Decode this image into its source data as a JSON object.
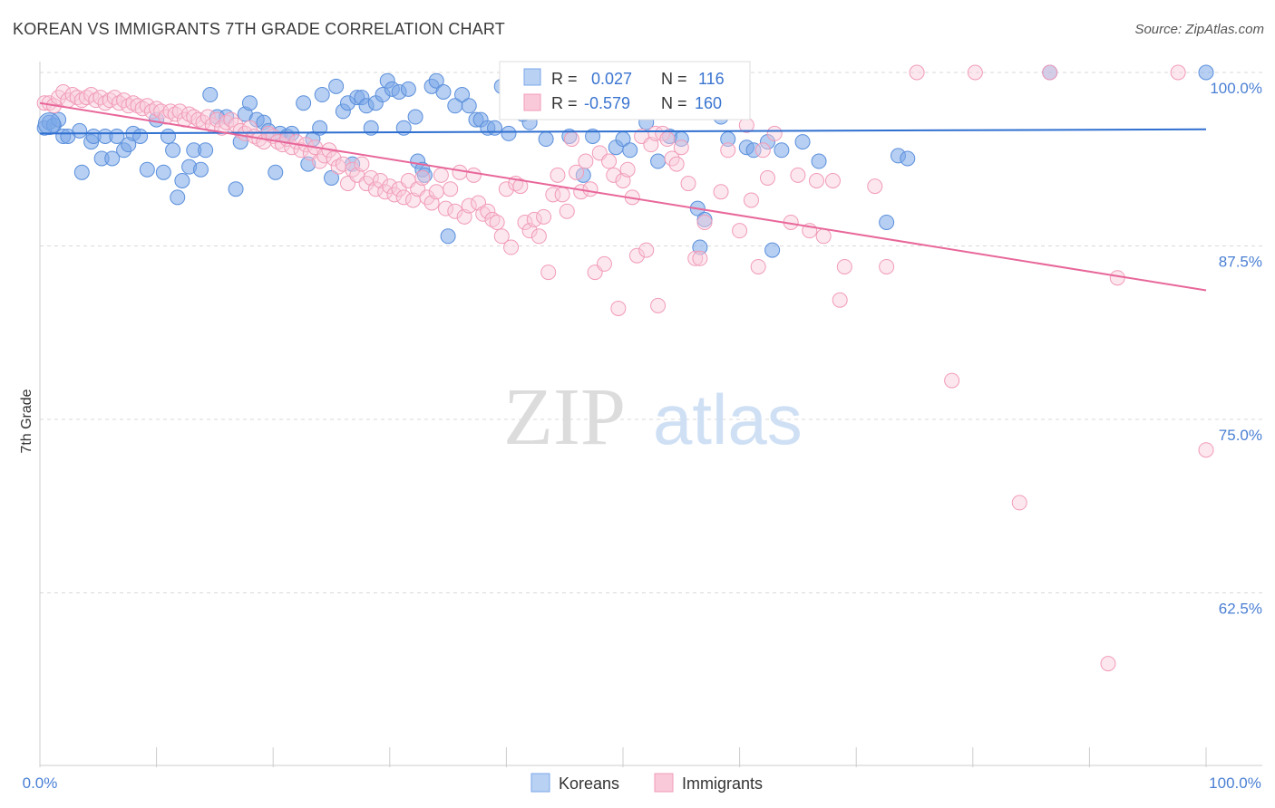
{
  "header": {
    "title": "KOREAN VS IMMIGRANTS 7TH GRADE CORRELATION CHART",
    "source": "Source: ZipAtlas.com"
  },
  "watermark": {
    "zip": "ZIP",
    "atlas": "atlas"
  },
  "legend_top": {
    "rows": [
      {
        "r_label": "R =",
        "r_value": "0.027",
        "n_label": "N =",
        "n_value": "116",
        "color": "#7aa7e8"
      },
      {
        "r_label": "R =",
        "r_value": "-0.579",
        "n_label": "N =",
        "n_value": "160",
        "color": "#f19bb8"
      }
    ]
  },
  "legend_bottom": {
    "items": [
      {
        "label": "Koreans",
        "color": "#7aa7e8"
      },
      {
        "label": "Immigrants",
        "color": "#f19bb8"
      }
    ]
  },
  "chart_data": {
    "type": "scatter",
    "title": "KOREAN VS IMMIGRANTS 7TH GRADE CORRELATION CHART",
    "xlabel": "",
    "ylabel": "7th Grade",
    "xlim": [
      0,
      100
    ],
    "ylim": [
      52.5,
      101.5
    ],
    "x_tick_labels": [
      "0.0%",
      "100.0%"
    ],
    "y_ticks": [
      100.0,
      87.5,
      75.0,
      62.5
    ],
    "y_tick_labels": [
      "100.0%",
      "87.5%",
      "75.0%",
      "62.5%"
    ],
    "grid": true,
    "legend_position": "top-center",
    "series": [
      {
        "name": "Koreans",
        "color": "#7aa7e8",
        "trend": {
          "x": [
            0,
            100
          ],
          "y": [
            95.6,
            95.9
          ]
        },
        "points": [
          [
            0.4,
            96.0
          ],
          [
            0.8,
            96.4
          ],
          [
            1.2,
            96.2
          ],
          [
            1.6,
            96.6
          ],
          [
            2.0,
            95.4
          ],
          [
            2.4,
            95.4
          ],
          [
            3.4,
            95.8
          ],
          [
            3.6,
            92.8
          ],
          [
            4.4,
            95.0
          ],
          [
            4.6,
            95.4
          ],
          [
            5.3,
            93.8
          ],
          [
            5.6,
            95.4
          ],
          [
            6.2,
            93.8
          ],
          [
            6.6,
            95.4
          ],
          [
            7.2,
            94.4
          ],
          [
            7.6,
            94.8
          ],
          [
            8.0,
            95.6
          ],
          [
            8.6,
            95.4
          ],
          [
            9.2,
            93.0
          ],
          [
            10.0,
            96.6
          ],
          [
            10.6,
            92.8
          ],
          [
            11.0,
            95.4
          ],
          [
            11.4,
            94.4
          ],
          [
            11.8,
            91.0
          ],
          [
            12.2,
            92.2
          ],
          [
            12.8,
            93.2
          ],
          [
            13.2,
            94.4
          ],
          [
            13.8,
            93.0
          ],
          [
            14.2,
            94.4
          ],
          [
            14.6,
            98.4
          ],
          [
            15.2,
            96.8
          ],
          [
            16.0,
            96.8
          ],
          [
            16.8,
            91.6
          ],
          [
            17.2,
            95.0
          ],
          [
            17.6,
            97.0
          ],
          [
            18.0,
            97.8
          ],
          [
            18.6,
            96.6
          ],
          [
            19.2,
            96.4
          ],
          [
            19.6,
            95.8
          ],
          [
            20.2,
            92.8
          ],
          [
            20.6,
            95.6
          ],
          [
            21.2,
            95.4
          ],
          [
            21.6,
            95.6
          ],
          [
            22.6,
            97.8
          ],
          [
            23.0,
            93.4
          ],
          [
            23.4,
            95.2
          ],
          [
            24.0,
            96.0
          ],
          [
            24.2,
            98.4
          ],
          [
            25.0,
            92.4
          ],
          [
            25.4,
            99.0
          ],
          [
            26.0,
            97.2
          ],
          [
            26.4,
            97.8
          ],
          [
            26.8,
            93.4
          ],
          [
            27.2,
            98.2
          ],
          [
            27.6,
            98.2
          ],
          [
            28.0,
            97.6
          ],
          [
            28.4,
            96.0
          ],
          [
            28.8,
            97.8
          ],
          [
            29.4,
            98.4
          ],
          [
            29.8,
            99.4
          ],
          [
            30.2,
            98.8
          ],
          [
            30.8,
            98.6
          ],
          [
            31.2,
            96.0
          ],
          [
            31.6,
            98.8
          ],
          [
            32.2,
            96.8
          ],
          [
            32.4,
            93.6
          ],
          [
            32.8,
            93.0
          ],
          [
            33.0,
            92.6
          ],
          [
            33.6,
            99.0
          ],
          [
            34.0,
            99.4
          ],
          [
            34.6,
            98.6
          ],
          [
            35.0,
            88.2
          ],
          [
            35.6,
            97.6
          ],
          [
            36.2,
            98.4
          ],
          [
            36.8,
            97.6
          ],
          [
            37.4,
            96.6
          ],
          [
            37.8,
            96.6
          ],
          [
            38.4,
            96.0
          ],
          [
            39.0,
            96.0
          ],
          [
            39.6,
            99.0
          ],
          [
            40.2,
            95.6
          ],
          [
            40.8,
            99.0
          ],
          [
            41.4,
            97.0
          ],
          [
            42.0,
            96.4
          ],
          [
            42.6,
            99.0
          ],
          [
            43.4,
            95.2
          ],
          [
            44.4,
            98.6
          ],
          [
            45.4,
            95.4
          ],
          [
            46.6,
            92.6
          ],
          [
            47.4,
            95.4
          ],
          [
            48.4,
            98.6
          ],
          [
            49.4,
            94.6
          ],
          [
            50.0,
            95.2
          ],
          [
            50.6,
            94.4
          ],
          [
            51.4,
            98.6
          ],
          [
            52.0,
            96.4
          ],
          [
            53.0,
            93.6
          ],
          [
            54.0,
            95.4
          ],
          [
            55.0,
            95.2
          ],
          [
            56.4,
            90.2
          ],
          [
            56.6,
            87.4
          ],
          [
            57.0,
            89.4
          ],
          [
            58.4,
            96.8
          ],
          [
            59.0,
            95.2
          ],
          [
            60.6,
            94.6
          ],
          [
            61.2,
            94.4
          ],
          [
            62.4,
            95.0
          ],
          [
            62.8,
            87.2
          ],
          [
            63.6,
            94.4
          ],
          [
            65.4,
            95.0
          ],
          [
            66.8,
            93.6
          ],
          [
            72.6,
            89.2
          ],
          [
            73.6,
            94.0
          ],
          [
            74.4,
            93.8
          ],
          [
            86.6,
            100.0
          ],
          [
            100.0,
            100.0
          ]
        ]
      },
      {
        "name": "Immigrants",
        "color": "#f19bb8",
        "trend": {
          "x": [
            0,
            100
          ],
          "y": [
            97.8,
            84.3
          ]
        },
        "points": [
          [
            0.4,
            97.8
          ],
          [
            0.8,
            97.8
          ],
          [
            1.2,
            97.6
          ],
          [
            1.6,
            98.2
          ],
          [
            2.0,
            98.6
          ],
          [
            2.4,
            98.0
          ],
          [
            2.8,
            98.4
          ],
          [
            3.2,
            98.2
          ],
          [
            3.6,
            98.0
          ],
          [
            4.0,
            98.2
          ],
          [
            4.4,
            98.4
          ],
          [
            4.8,
            98.0
          ],
          [
            5.2,
            98.2
          ],
          [
            5.6,
            97.8
          ],
          [
            6.0,
            98.0
          ],
          [
            6.4,
            98.2
          ],
          [
            6.8,
            97.8
          ],
          [
            7.2,
            98.0
          ],
          [
            7.6,
            97.6
          ],
          [
            8.0,
            97.8
          ],
          [
            8.4,
            97.6
          ],
          [
            8.8,
            97.4
          ],
          [
            9.2,
            97.6
          ],
          [
            9.6,
            97.2
          ],
          [
            10.0,
            97.4
          ],
          [
            10.4,
            97.2
          ],
          [
            10.8,
            96.8
          ],
          [
            11.2,
            97.2
          ],
          [
            11.6,
            97.0
          ],
          [
            12.0,
            97.2
          ],
          [
            12.4,
            96.6
          ],
          [
            12.8,
            97.0
          ],
          [
            13.2,
            96.8
          ],
          [
            13.6,
            96.6
          ],
          [
            14.0,
            96.4
          ],
          [
            14.4,
            96.8
          ],
          [
            14.8,
            96.2
          ],
          [
            15.2,
            96.6
          ],
          [
            15.6,
            96.0
          ],
          [
            16.0,
            96.4
          ],
          [
            16.4,
            96.6
          ],
          [
            16.8,
            96.2
          ],
          [
            17.2,
            95.8
          ],
          [
            17.6,
            95.6
          ],
          [
            18.0,
            96.0
          ],
          [
            18.4,
            95.4
          ],
          [
            18.8,
            95.2
          ],
          [
            19.2,
            95.0
          ],
          [
            19.6,
            95.6
          ],
          [
            20.0,
            95.4
          ],
          [
            20.4,
            95.0
          ],
          [
            20.8,
            94.8
          ],
          [
            21.2,
            95.2
          ],
          [
            21.6,
            94.6
          ],
          [
            22.0,
            95.0
          ],
          [
            22.4,
            94.4
          ],
          [
            22.8,
            94.8
          ],
          [
            23.2,
            94.2
          ],
          [
            23.6,
            94.6
          ],
          [
            24.0,
            93.6
          ],
          [
            24.4,
            94.0
          ],
          [
            24.8,
            94.4
          ],
          [
            25.2,
            93.8
          ],
          [
            25.6,
            93.2
          ],
          [
            26.0,
            93.4
          ],
          [
            26.4,
            92.0
          ],
          [
            26.8,
            93.0
          ],
          [
            27.2,
            92.6
          ],
          [
            27.6,
            93.4
          ],
          [
            28.0,
            92.0
          ],
          [
            28.4,
            92.4
          ],
          [
            28.8,
            91.6
          ],
          [
            29.2,
            92.2
          ],
          [
            29.6,
            91.4
          ],
          [
            30.0,
            91.8
          ],
          [
            30.4,
            91.2
          ],
          [
            30.8,
            91.6
          ],
          [
            31.2,
            91.0
          ],
          [
            31.6,
            92.2
          ],
          [
            32.0,
            90.8
          ],
          [
            32.4,
            91.6
          ],
          [
            32.8,
            92.4
          ],
          [
            33.2,
            91.0
          ],
          [
            33.6,
            90.6
          ],
          [
            34.0,
            91.4
          ],
          [
            34.4,
            92.6
          ],
          [
            34.8,
            90.2
          ],
          [
            35.2,
            91.6
          ],
          [
            35.6,
            90.0
          ],
          [
            36.0,
            92.8
          ],
          [
            36.4,
            89.6
          ],
          [
            36.8,
            90.4
          ],
          [
            37.2,
            92.6
          ],
          [
            37.6,
            90.6
          ],
          [
            38.0,
            89.8
          ],
          [
            38.4,
            90.0
          ],
          [
            38.8,
            89.4
          ],
          [
            39.2,
            89.2
          ],
          [
            39.6,
            88.2
          ],
          [
            40.0,
            91.6
          ],
          [
            40.4,
            87.4
          ],
          [
            40.8,
            92.0
          ],
          [
            41.2,
            91.8
          ],
          [
            41.6,
            89.2
          ],
          [
            42.0,
            88.6
          ],
          [
            42.4,
            89.4
          ],
          [
            42.8,
            88.2
          ],
          [
            43.2,
            89.6
          ],
          [
            43.6,
            85.6
          ],
          [
            44.0,
            91.2
          ],
          [
            44.4,
            92.6
          ],
          [
            44.8,
            91.2
          ],
          [
            45.2,
            90.0
          ],
          [
            45.6,
            95.2
          ],
          [
            46.0,
            92.8
          ],
          [
            46.4,
            91.4
          ],
          [
            46.8,
            93.6
          ],
          [
            47.2,
            91.6
          ],
          [
            47.6,
            85.6
          ],
          [
            48.0,
            94.2
          ],
          [
            48.4,
            86.2
          ],
          [
            48.8,
            93.6
          ],
          [
            49.2,
            92.6
          ],
          [
            49.6,
            83.0
          ],
          [
            50.0,
            92.2
          ],
          [
            50.4,
            93.0
          ],
          [
            50.8,
            91.0
          ],
          [
            51.2,
            86.8
          ],
          [
            51.6,
            95.4
          ],
          [
            52.0,
            87.2
          ],
          [
            52.4,
            94.8
          ],
          [
            52.8,
            95.6
          ],
          [
            53.0,
            83.2
          ],
          [
            53.4,
            95.6
          ],
          [
            53.8,
            95.2
          ],
          [
            54.2,
            93.8
          ],
          [
            54.6,
            93.4
          ],
          [
            55.0,
            94.6
          ],
          [
            55.6,
            92.0
          ],
          [
            56.2,
            86.6
          ],
          [
            56.6,
            86.6
          ],
          [
            57.0,
            89.2
          ],
          [
            58.4,
            91.4
          ],
          [
            59.0,
            94.4
          ],
          [
            60.0,
            88.6
          ],
          [
            60.6,
            96.2
          ],
          [
            61.0,
            90.8
          ],
          [
            61.6,
            86.0
          ],
          [
            62.0,
            94.4
          ],
          [
            62.4,
            92.4
          ],
          [
            63.0,
            95.6
          ],
          [
            64.4,
            89.2
          ],
          [
            65.0,
            92.6
          ],
          [
            66.0,
            88.6
          ],
          [
            66.6,
            92.2
          ],
          [
            67.2,
            88.2
          ],
          [
            68.0,
            92.2
          ],
          [
            68.6,
            83.6
          ],
          [
            69.0,
            86.0
          ],
          [
            71.6,
            91.8
          ],
          [
            72.6,
            86.0
          ],
          [
            75.2,
            100.0
          ],
          [
            78.2,
            77.8
          ],
          [
            80.2,
            100.0
          ],
          [
            84.0,
            69.0
          ],
          [
            86.6,
            100.0
          ],
          [
            91.6,
            57.4
          ],
          [
            92.4,
            85.2
          ],
          [
            97.6,
            100.0
          ],
          [
            100.0,
            72.8
          ]
        ]
      }
    ]
  }
}
